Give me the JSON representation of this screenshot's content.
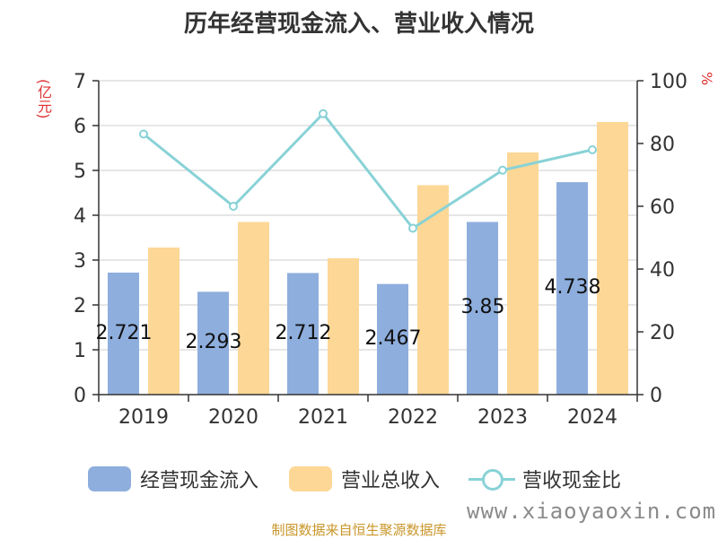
{
  "title": "历年经营现金流入、营业收入情况",
  "left_unit": "(亿元)",
  "right_unit": "%",
  "source": "制图数据来自恒生聚源数据库",
  "watermark": "www.xiaoyaoxin.com",
  "colors": {
    "cash": "#8eaedd",
    "revenue": "#fdd796",
    "ratio": "#88d2d6",
    "source": "#c8962a",
    "unit": "#e03030"
  },
  "legend": {
    "cash": "经营现金流入",
    "revenue": "营业总收入",
    "ratio": "营收现金比"
  },
  "chart_data": {
    "type": "bar",
    "categories": [
      "2019",
      "2020",
      "2021",
      "2022",
      "2023",
      "2024"
    ],
    "series": [
      {
        "name": "经营现金流入",
        "type": "bar",
        "axis": "left",
        "values": [
          2.721,
          2.293,
          2.712,
          2.467,
          3.85,
          4.738
        ]
      },
      {
        "name": "营业总收入",
        "type": "bar",
        "axis": "left",
        "values": [
          3.28,
          3.85,
          3.04,
          4.67,
          5.4,
          6.08
        ]
      },
      {
        "name": "营收现金比",
        "type": "line",
        "axis": "right",
        "values": [
          83,
          60,
          89.5,
          53,
          71.5,
          78
        ]
      }
    ],
    "data_labels": [
      "2.721",
      "2.293",
      "2.712",
      "2.467",
      "3.85",
      "4.738"
    ],
    "y_left": {
      "range": [
        0,
        7
      ],
      "ticks": [
        "0",
        "1",
        "2",
        "3",
        "4",
        "5",
        "6",
        "7"
      ]
    },
    "y_right": {
      "range": [
        0,
        100
      ],
      "ticks": [
        "0",
        "20",
        "40",
        "60",
        "80",
        "100"
      ]
    },
    "grid": true,
    "legend_position": "bottom"
  }
}
